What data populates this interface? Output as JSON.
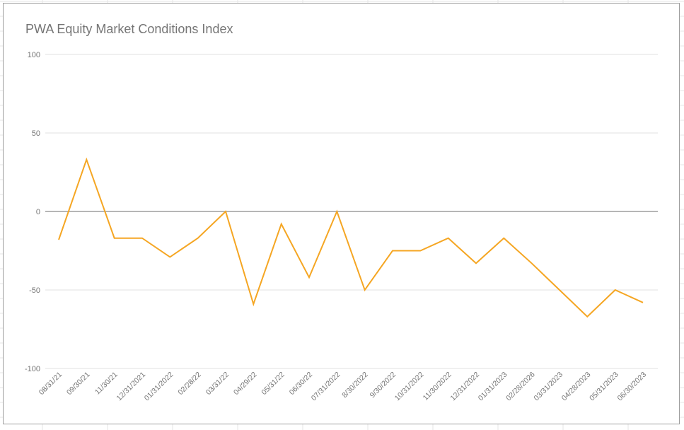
{
  "chart_data": {
    "type": "line",
    "title": "PWA Equity Market Conditions Index",
    "xlabel": "",
    "ylabel": "",
    "ylim": [
      -100,
      100
    ],
    "yticks": [
      100,
      50,
      0,
      -50,
      -100
    ],
    "ytick_labels": [
      "100",
      "50",
      "0",
      "-50",
      "-100"
    ],
    "grid": true,
    "legend": "none",
    "categories": [
      "08/31/21",
      "09/30/21",
      "11/30/21",
      "12/31/2021",
      "01/31/2022",
      "02/28/22",
      "03/31/22",
      "04/29/22",
      "05/31/22",
      "06/30/22",
      "07/31/2022",
      "8/30/2022",
      "9/30/2022",
      "10/31/2022",
      "11/30/2022",
      "12/31/2022",
      "01/31/2023",
      "02/28/2026",
      "03/31/2023",
      "04/28/2023",
      "05/31/2023",
      "06/30/2023"
    ],
    "series": [
      {
        "color": "#f5a623",
        "values": [
          -18,
          33,
          -17,
          -17,
          -29,
          -17,
          0,
          -59,
          -8,
          -42,
          0,
          -50,
          -25,
          -25,
          -17,
          -33,
          -17,
          -33,
          -50,
          -67,
          -50,
          -58
        ]
      }
    ],
    "zero_line_color": "#9e9e9e",
    "grid_color": "#e0e0e0"
  }
}
